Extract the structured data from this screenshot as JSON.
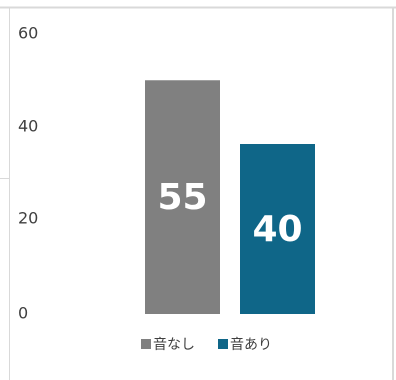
{
  "chart_data": {
    "type": "bar",
    "categories": [
      "音なし",
      "音あり"
    ],
    "values": [
      55,
      40
    ],
    "colors": [
      "#808080",
      "#0f6688"
    ],
    "ylim": [
      0,
      60
    ],
    "yticks": [
      0,
      20,
      40,
      60
    ],
    "grid": false,
    "data_labels": true,
    "legend": {
      "position": "bottom",
      "entries": [
        "音なし",
        "音あり"
      ]
    }
  }
}
